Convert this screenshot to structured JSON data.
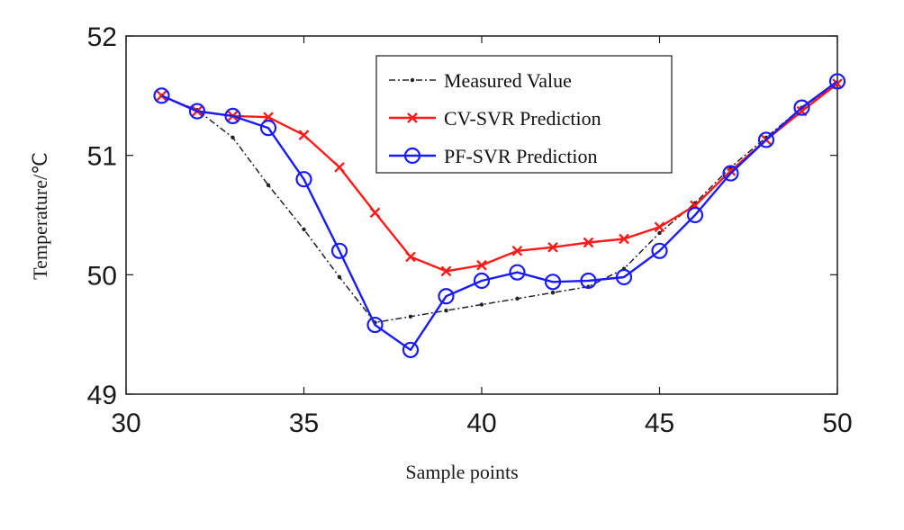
{
  "chart_data": {
    "type": "line",
    "title": "",
    "xlabel": "Sample points",
    "ylabel": "Temperature/℃",
    "xlim": [
      30,
      50
    ],
    "ylim": [
      49,
      52
    ],
    "xticks": [
      "30",
      "35",
      "40",
      "45",
      "50"
    ],
    "yticks": [
      "49",
      "50",
      "51",
      "52"
    ],
    "grid": false,
    "legend_position": "top-center",
    "x": [
      31,
      32,
      33,
      34,
      35,
      36,
      37,
      38,
      39,
      40,
      41,
      42,
      43,
      44,
      45,
      46,
      47,
      48,
      49,
      50
    ],
    "series": [
      {
        "name": "Measured Value",
        "color": "#222222",
        "marker": "dot",
        "line": "dash-dot",
        "values": [
          51.5,
          51.38,
          51.15,
          50.75,
          50.38,
          49.98,
          49.6,
          49.65,
          49.7,
          49.75,
          49.8,
          49.85,
          49.9,
          50.05,
          50.35,
          50.6,
          50.9,
          51.15,
          51.4,
          51.6
        ]
      },
      {
        "name": "CV-SVR Prediction",
        "color": "#ff1a1a",
        "marker": "x",
        "line": "solid",
        "values": [
          51.5,
          51.37,
          51.33,
          51.32,
          51.17,
          50.9,
          50.52,
          50.15,
          50.03,
          50.08,
          50.2,
          50.23,
          50.27,
          50.3,
          50.4,
          50.58,
          50.87,
          51.13,
          51.37,
          51.6
        ]
      },
      {
        "name": "PF-SVR Prediction",
        "color": "#1a1aff",
        "marker": "circle",
        "line": "solid",
        "values": [
          51.5,
          51.37,
          51.33,
          51.23,
          50.8,
          50.2,
          49.58,
          49.37,
          49.82,
          49.95,
          50.02,
          49.94,
          49.95,
          49.98,
          50.2,
          50.5,
          50.85,
          51.13,
          51.4,
          51.62
        ]
      }
    ]
  }
}
